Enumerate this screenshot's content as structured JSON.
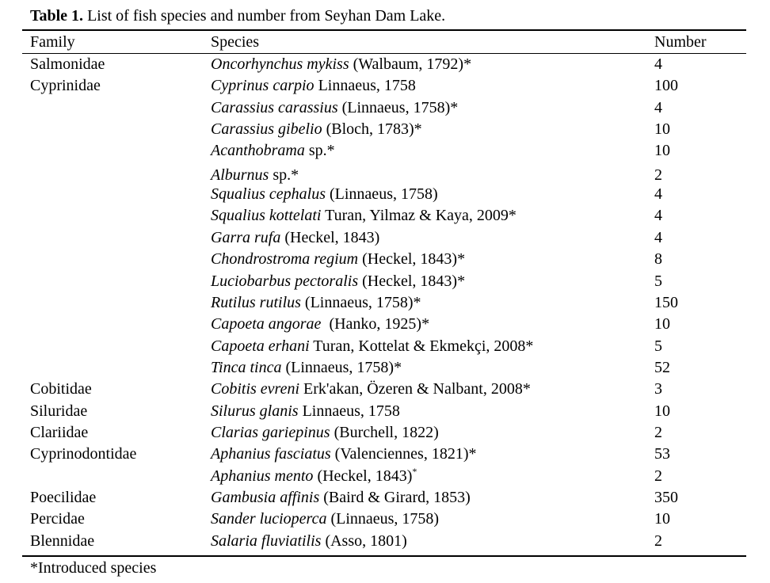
{
  "caption": {
    "label": "Table 1.",
    "text": " List of fish species and number from Seyhan Dam Lake."
  },
  "headers": {
    "family": "Family",
    "species": "Species",
    "number": "Number"
  },
  "rows": [
    {
      "family": "Salmonidae",
      "species_italic": "Oncorhynchus mykiss",
      "authority": " (Walbaum, 1792)*",
      "number": "4"
    },
    {
      "family": "Cyprinidae",
      "species_italic": "Cyprinus carpio",
      "authority": " Linnaeus, 1758",
      "number": "100"
    },
    {
      "family": "",
      "species_italic": "Carassius carassius",
      "authority": " (Linnaeus, 1758)*",
      "number": "4"
    },
    {
      "family": "",
      "species_italic": "Carassius gibelio",
      "authority": " (Bloch, 1783)*",
      "number": "10"
    },
    {
      "family": "",
      "species_italic": "Acanthobrama",
      "authority": " sp.*",
      "number": "10"
    },
    {
      "family": "",
      "species_italic": "Alburnus",
      "authority": " sp.*",
      "number": "2"
    },
    {
      "family": "",
      "species_italic": "Squalius cephalus",
      "authority": " (Linnaeus, 1758)",
      "number": "4"
    },
    {
      "family": "",
      "species_italic": "Squalius kottelati",
      "authority": " Turan, Yilmaz & Kaya, 2009*",
      "number": "4"
    },
    {
      "family": "",
      "species_italic": "Garra rufa",
      "authority": " (Heckel, 1843)",
      "number": "4"
    },
    {
      "family": "",
      "species_italic": "Chondrostroma regium",
      "authority": " (Heckel, 1843)*",
      "number": "8"
    },
    {
      "family": "",
      "species_italic": "Luciobarbus pectoralis",
      "authority": " (Heckel, 1843)*",
      "number": "5"
    },
    {
      "family": "",
      "species_italic": "Rutilus rutilus",
      "authority": " (Linnaeus, 1758)*",
      "number": "150"
    },
    {
      "family": "",
      "species_italic": "Capoeta angorae",
      "authority": "  (Hanko, 1925)*",
      "number": "10"
    },
    {
      "family": "",
      "species_italic": "Capoeta erhani",
      "authority": " Turan, Kottelat & Ekmekçi, 2008*",
      "number": "5"
    },
    {
      "family": "",
      "species_italic": "Tinca tinca",
      "authority": " (Linnaeus, 1758)*",
      "number": "52"
    },
    {
      "family": "Cobitidae",
      "species_italic": "Cobitis evreni",
      "authority": " Erk'akan, Özeren & Nalbant, 2008*",
      "number": "3"
    },
    {
      "family": "Siluridae",
      "species_italic": "Silurus glanis",
      "authority": " Linnaeus, 1758",
      "number": "10"
    },
    {
      "family": "Clariidae",
      "species_italic": "Clarias gariepinus",
      "authority": " (Burchell, 1822)",
      "number": "2"
    },
    {
      "family": "Cyprinodontidae",
      "species_italic": "Aphanius fasciatus",
      "authority": " (Valenciennes, 1821)*",
      "number": "53"
    },
    {
      "family": "",
      "species_italic": "Aphanius mento",
      "authority": " (Heckel, 1843)",
      "sup": "*",
      "number": "2"
    },
    {
      "family": "Poecilidae",
      "species_italic": "Gambusia affinis",
      "authority": " (Baird & Girard, 1853)",
      "number": "350"
    },
    {
      "family": "Percidae",
      "species_italic": "Sander lucioperca",
      "authority": " (Linnaeus, 1758)",
      "number": "10"
    },
    {
      "family": "Blennidae",
      "species_italic": "Salaria fluviatilis",
      "authority": " (Asso, 1801)",
      "number": "2"
    }
  ],
  "footnote": "*Introduced species"
}
